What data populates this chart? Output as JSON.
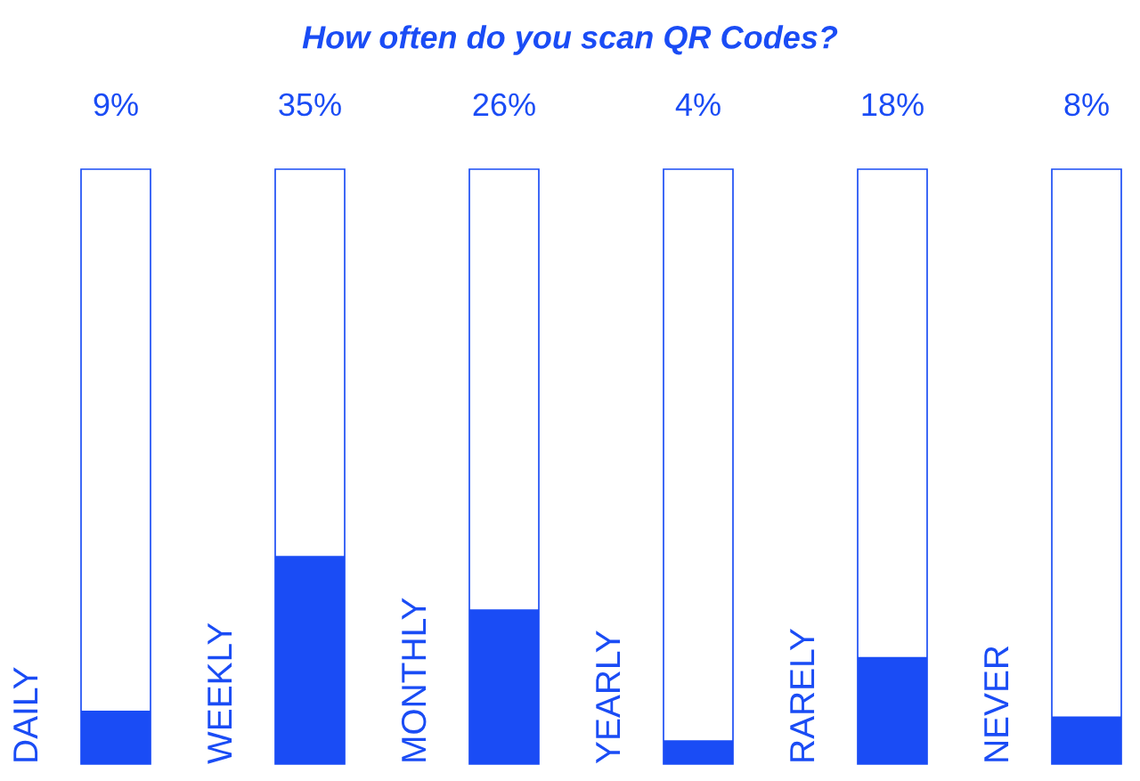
{
  "chart_data": {
    "type": "bar",
    "title": "How often do you scan QR Codes?",
    "categories": [
      "DAILY",
      "WEEKLY",
      "MONTHLY",
      "YEARLY",
      "RARELY",
      "NEVER"
    ],
    "series": [
      {
        "color": "#1a4cf5",
        "values": [
          9,
          35,
          26,
          4,
          18,
          8
        ],
        "value_labels": [
          "9%",
          "35%",
          "26%",
          "4%",
          "18%",
          "8%"
        ]
      },
      {
        "color": "#1a4cf5",
        "values": [
          100,
          100,
          100,
          100,
          100,
          100
        ]
      }
    ],
    "ylim": [
      0,
      100
    ]
  }
}
